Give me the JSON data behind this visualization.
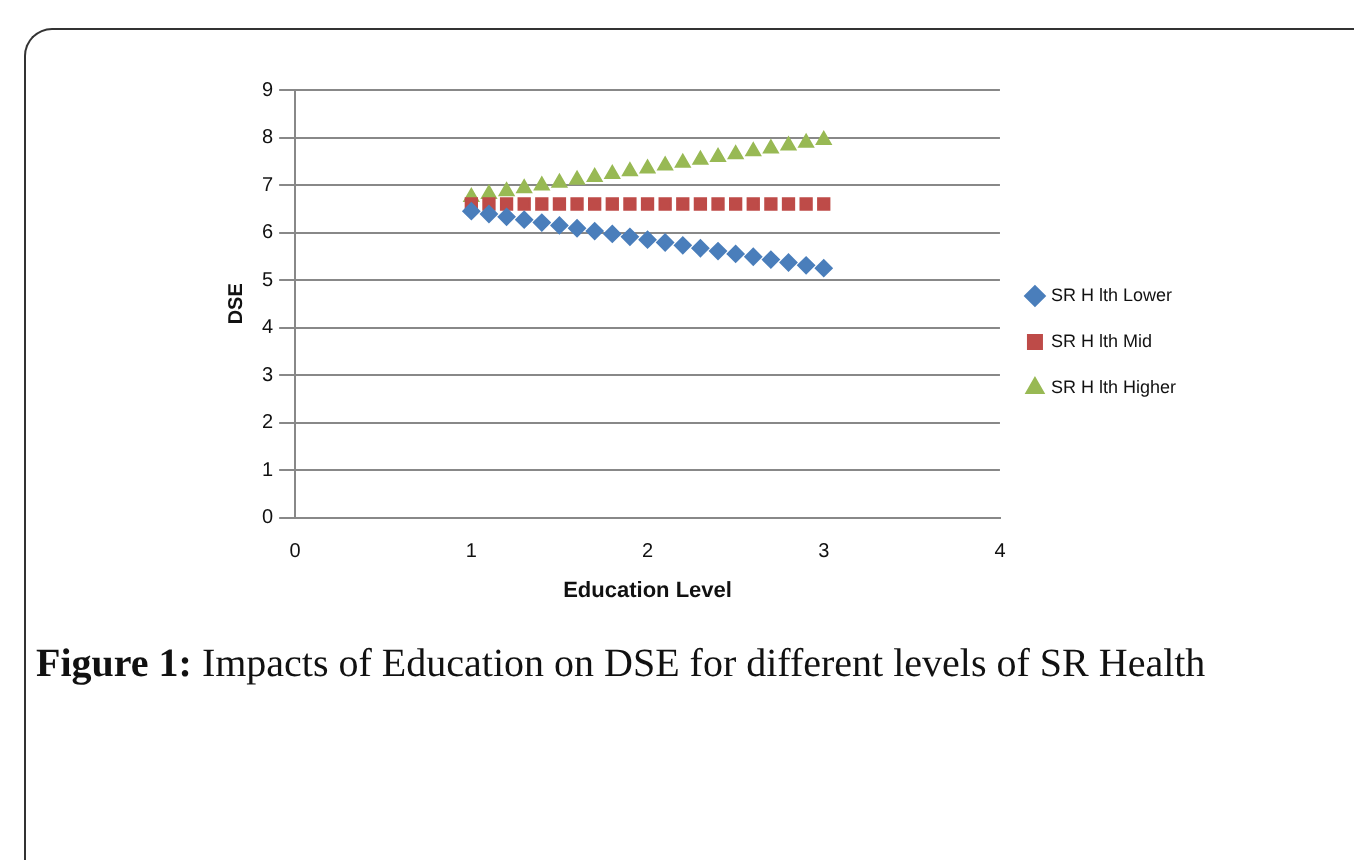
{
  "chart_data": {
    "type": "scatter",
    "xlabel": "Education Level",
    "ylabel": "DSE",
    "x": [
      1,
      1.1,
      1.2,
      1.3,
      1.4,
      1.5,
      1.6,
      1.7,
      1.8,
      1.9,
      2,
      2.1,
      2.2,
      2.3,
      2.4,
      2.5,
      2.6,
      2.7,
      2.8,
      2.9,
      3
    ],
    "series": [
      {
        "name": "SR H lth Lower",
        "color": "#4a7ebb",
        "marker": "diamond",
        "values": [
          6.45,
          6.39,
          6.33,
          6.27,
          6.21,
          6.15,
          6.09,
          6.03,
          5.97,
          5.91,
          5.85,
          5.79,
          5.73,
          5.67,
          5.61,
          5.55,
          5.49,
          5.43,
          5.37,
          5.31,
          5.25
        ]
      },
      {
        "name": "SR H lth Mid",
        "color": "#be4b48",
        "marker": "square",
        "values": [
          6.6,
          6.6,
          6.6,
          6.6,
          6.6,
          6.6,
          6.6,
          6.6,
          6.6,
          6.6,
          6.6,
          6.6,
          6.6,
          6.6,
          6.6,
          6.6,
          6.6,
          6.6,
          6.6,
          6.6,
          6.6
        ]
      },
      {
        "name": "SR H lth Higher",
        "color": "#98b954",
        "marker": "triangle",
        "values": [
          6.75,
          6.81,
          6.87,
          6.93,
          6.99,
          7.05,
          7.11,
          7.17,
          7.23,
          7.29,
          7.35,
          7.41,
          7.47,
          7.53,
          7.59,
          7.65,
          7.71,
          7.77,
          7.83,
          7.89,
          7.95
        ]
      }
    ],
    "xlim": [
      0,
      4
    ],
    "xticks": [
      0,
      1,
      2,
      3,
      4
    ],
    "ylim": [
      0,
      9
    ],
    "yticks": [
      0,
      1,
      2,
      3,
      4,
      5,
      6,
      7,
      8,
      9
    ],
    "grid": "y",
    "legend": "right",
    "annotations": [
      "Figure 1: Impacts of Education on DSE for different levels of SR Health"
    ]
  }
}
